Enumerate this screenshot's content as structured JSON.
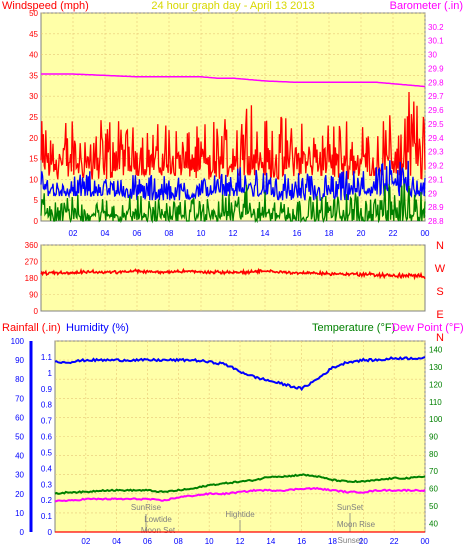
{
  "title": "24 hour graph day - April 13 2013",
  "colors": {
    "background": "#ffffff",
    "plot_bg": "#ffffa8",
    "grid": "#e8c878",
    "title": "#d8d800",
    "wind_label": "#ff0000",
    "baro": "#ff00ff",
    "gust": "#ff0000",
    "speed": "#0000ff",
    "avg": "#008000",
    "dir": "#ff0000",
    "rain": "#ff0000",
    "humidity": "#0000ff",
    "humidity_axis": "#0000ff",
    "temp": "#008000",
    "dew": "#ff00ff",
    "event": "#808080"
  },
  "chart_data": [
    {
      "type": "line",
      "name": "wind-and-barometer",
      "left_label": "Windspeed (mph)",
      "right_label": "Barometer (.in)",
      "ylim_left": [
        0,
        50
      ],
      "yticks_left": [
        "0",
        "5",
        "10",
        "15",
        "20",
        "25",
        "30",
        "35",
        "40",
        "45",
        "50"
      ],
      "ylim_right": [
        28.8,
        30.3
      ],
      "yticks_right": [
        "28.8",
        "28.9",
        "29",
        "29.1",
        "29.2",
        "29.3",
        "29.4",
        "29.5",
        "29.6",
        "29.7",
        "29.8",
        "29.9",
        "30",
        "30.1",
        "30.2"
      ],
      "xticks": [
        "02",
        "04",
        "06",
        "08",
        "10",
        "12",
        "14",
        "16",
        "18",
        "20",
        "22",
        "00"
      ],
      "series": [
        {
          "key": "gust",
          "axis": "left",
          "band": true,
          "min": [
            10,
            10,
            11,
            10,
            10,
            11,
            11,
            11,
            11,
            11,
            10,
            10,
            11,
            11,
            11,
            10,
            11,
            11,
            11,
            10,
            11,
            11,
            11,
            11,
            10
          ],
          "max": [
            25,
            23,
            24,
            25,
            24,
            24,
            22,
            23,
            24,
            22,
            23,
            24,
            25,
            33,
            24,
            25,
            24,
            22,
            23,
            25,
            24,
            23,
            26,
            31,
            32
          ]
        },
        {
          "key": "speed",
          "axis": "left",
          "band": true,
          "min": [
            6,
            6,
            6,
            6,
            6,
            6,
            5,
            5,
            5,
            5,
            6,
            6,
            6,
            6,
            6,
            5,
            5,
            5,
            5,
            5,
            6,
            6,
            6,
            6,
            6
          ],
          "max": [
            12,
            11,
            11,
            12,
            11,
            11,
            11,
            11,
            11,
            10,
            11,
            11,
            12,
            14,
            12,
            11,
            12,
            11,
            11,
            12,
            12,
            13,
            15,
            16,
            15
          ]
        },
        {
          "key": "avg",
          "axis": "left",
          "band": true,
          "min": [
            0,
            0,
            0,
            0,
            0,
            0,
            0,
            0,
            0,
            0,
            0,
            0,
            0,
            0,
            0,
            0,
            0,
            0,
            0,
            0,
            0,
            0,
            0,
            0,
            0
          ],
          "max": [
            7,
            6,
            6,
            7,
            6,
            6,
            6,
            6,
            6,
            5,
            6,
            6,
            7,
            9,
            7,
            6,
            7,
            6,
            6,
            7,
            7,
            8,
            9,
            9,
            8
          ]
        },
        {
          "key": "baro",
          "axis": "right",
          "band": false,
          "x": [
            0,
            2,
            4,
            6,
            8,
            10,
            11,
            12,
            14,
            16,
            18,
            20,
            21,
            22,
            23,
            24
          ],
          "values": [
            29.86,
            29.86,
            29.85,
            29.84,
            29.84,
            29.84,
            29.83,
            29.83,
            29.81,
            29.8,
            29.8,
            29.8,
            29.8,
            29.79,
            29.78,
            29.77
          ]
        }
      ]
    },
    {
      "type": "line",
      "name": "wind-direction",
      "ylim_left": [
        0,
        360
      ],
      "yticks_left": [
        "0",
        "90",
        "180",
        "270",
        "360"
      ],
      "right_labels": [
        "N",
        "W",
        "S",
        "E",
        "N"
      ],
      "xticks": [],
      "series": [
        {
          "key": "dir",
          "axis": "left",
          "band": true,
          "min": [
            190,
            195,
            195,
            200,
            195,
            200,
            205,
            200,
            200,
            205,
            200,
            195,
            200,
            195,
            205,
            200,
            195,
            195,
            190,
            190,
            185,
            180,
            175,
            175,
            170
          ],
          "max": [
            220,
            225,
            220,
            230,
            225,
            225,
            230,
            225,
            225,
            230,
            225,
            225,
            225,
            225,
            230,
            225,
            220,
            220,
            215,
            215,
            215,
            215,
            210,
            210,
            205
          ]
        }
      ]
    },
    {
      "type": "line",
      "name": "rain-humidity-temperature",
      "labels": [
        "Rainfall (.in)",
        "Humidity (%)",
        "Temperature (°F)",
        "Dew Point (°F)"
      ],
      "ylim_left": [
        0,
        100
      ],
      "yticks_left": [
        "0",
        "10",
        "20",
        "30",
        "40",
        "50",
        "60",
        "70",
        "80",
        "90",
        "100"
      ],
      "ylim_inner": [
        0,
        1.2
      ],
      "yticks_inner": [
        "0",
        "0.1",
        "0.2",
        "0.3",
        "0.4",
        "0.5",
        "0.6",
        "0.7",
        "0.8",
        "0.9",
        "1",
        "1.1"
      ],
      "ylim_right": [
        35,
        145
      ],
      "yticks_right": [
        "40",
        "50",
        "60",
        "70",
        "80",
        "90",
        "100",
        "110",
        "120",
        "130",
        "140"
      ],
      "xticks": [
        "02",
        "04",
        "06",
        "08",
        "10",
        "12",
        "14",
        "16",
        "18",
        "20",
        "22",
        "00"
      ],
      "annotations": [
        "SunRise",
        "Lowtide",
        "Moon Set",
        "Hightide",
        "SunSet",
        "Moon Rise",
        "Sunset"
      ],
      "series": [
        {
          "key": "humidity",
          "axis": "left",
          "x": [
            0,
            1,
            2,
            3,
            4,
            5,
            6,
            7,
            8,
            9,
            10,
            11,
            12,
            13,
            14,
            15,
            16,
            17,
            18,
            19,
            20,
            21,
            22,
            23,
            24
          ],
          "values": [
            89,
            89,
            90,
            90,
            90,
            90,
            90,
            90,
            90,
            90,
            89,
            88,
            84,
            81,
            79,
            77,
            75,
            80,
            86,
            89,
            90,
            90,
            91,
            91,
            91
          ]
        },
        {
          "key": "temp",
          "axis": "right",
          "x": [
            0,
            1,
            2,
            3,
            4,
            5,
            6,
            7,
            8,
            9,
            10,
            11,
            12,
            13,
            14,
            15,
            16,
            17,
            18,
            19,
            20,
            21,
            22,
            23,
            24
          ],
          "values": [
            57,
            58,
            58,
            59,
            59,
            59,
            59,
            58,
            59,
            60,
            62,
            63,
            64,
            65,
            67,
            67,
            68,
            67,
            65,
            64,
            64,
            65,
            66,
            66,
            67
          ]
        },
        {
          "key": "dew",
          "axis": "right",
          "x": [
            0,
            1,
            2,
            3,
            4,
            5,
            6,
            7,
            8,
            9,
            10,
            11,
            12,
            13,
            14,
            15,
            16,
            17,
            18,
            19,
            20,
            21,
            22,
            23,
            24
          ],
          "values": [
            53,
            53,
            54,
            54,
            54,
            54,
            54,
            53,
            55,
            56,
            57,
            57,
            58,
            59,
            59,
            59,
            60,
            60,
            59,
            58,
            58,
            59,
            59,
            59,
            59
          ]
        },
        {
          "key": "rain",
          "axis": "inner",
          "x": [
            0,
            24
          ],
          "values": [
            0,
            0
          ]
        }
      ]
    }
  ]
}
